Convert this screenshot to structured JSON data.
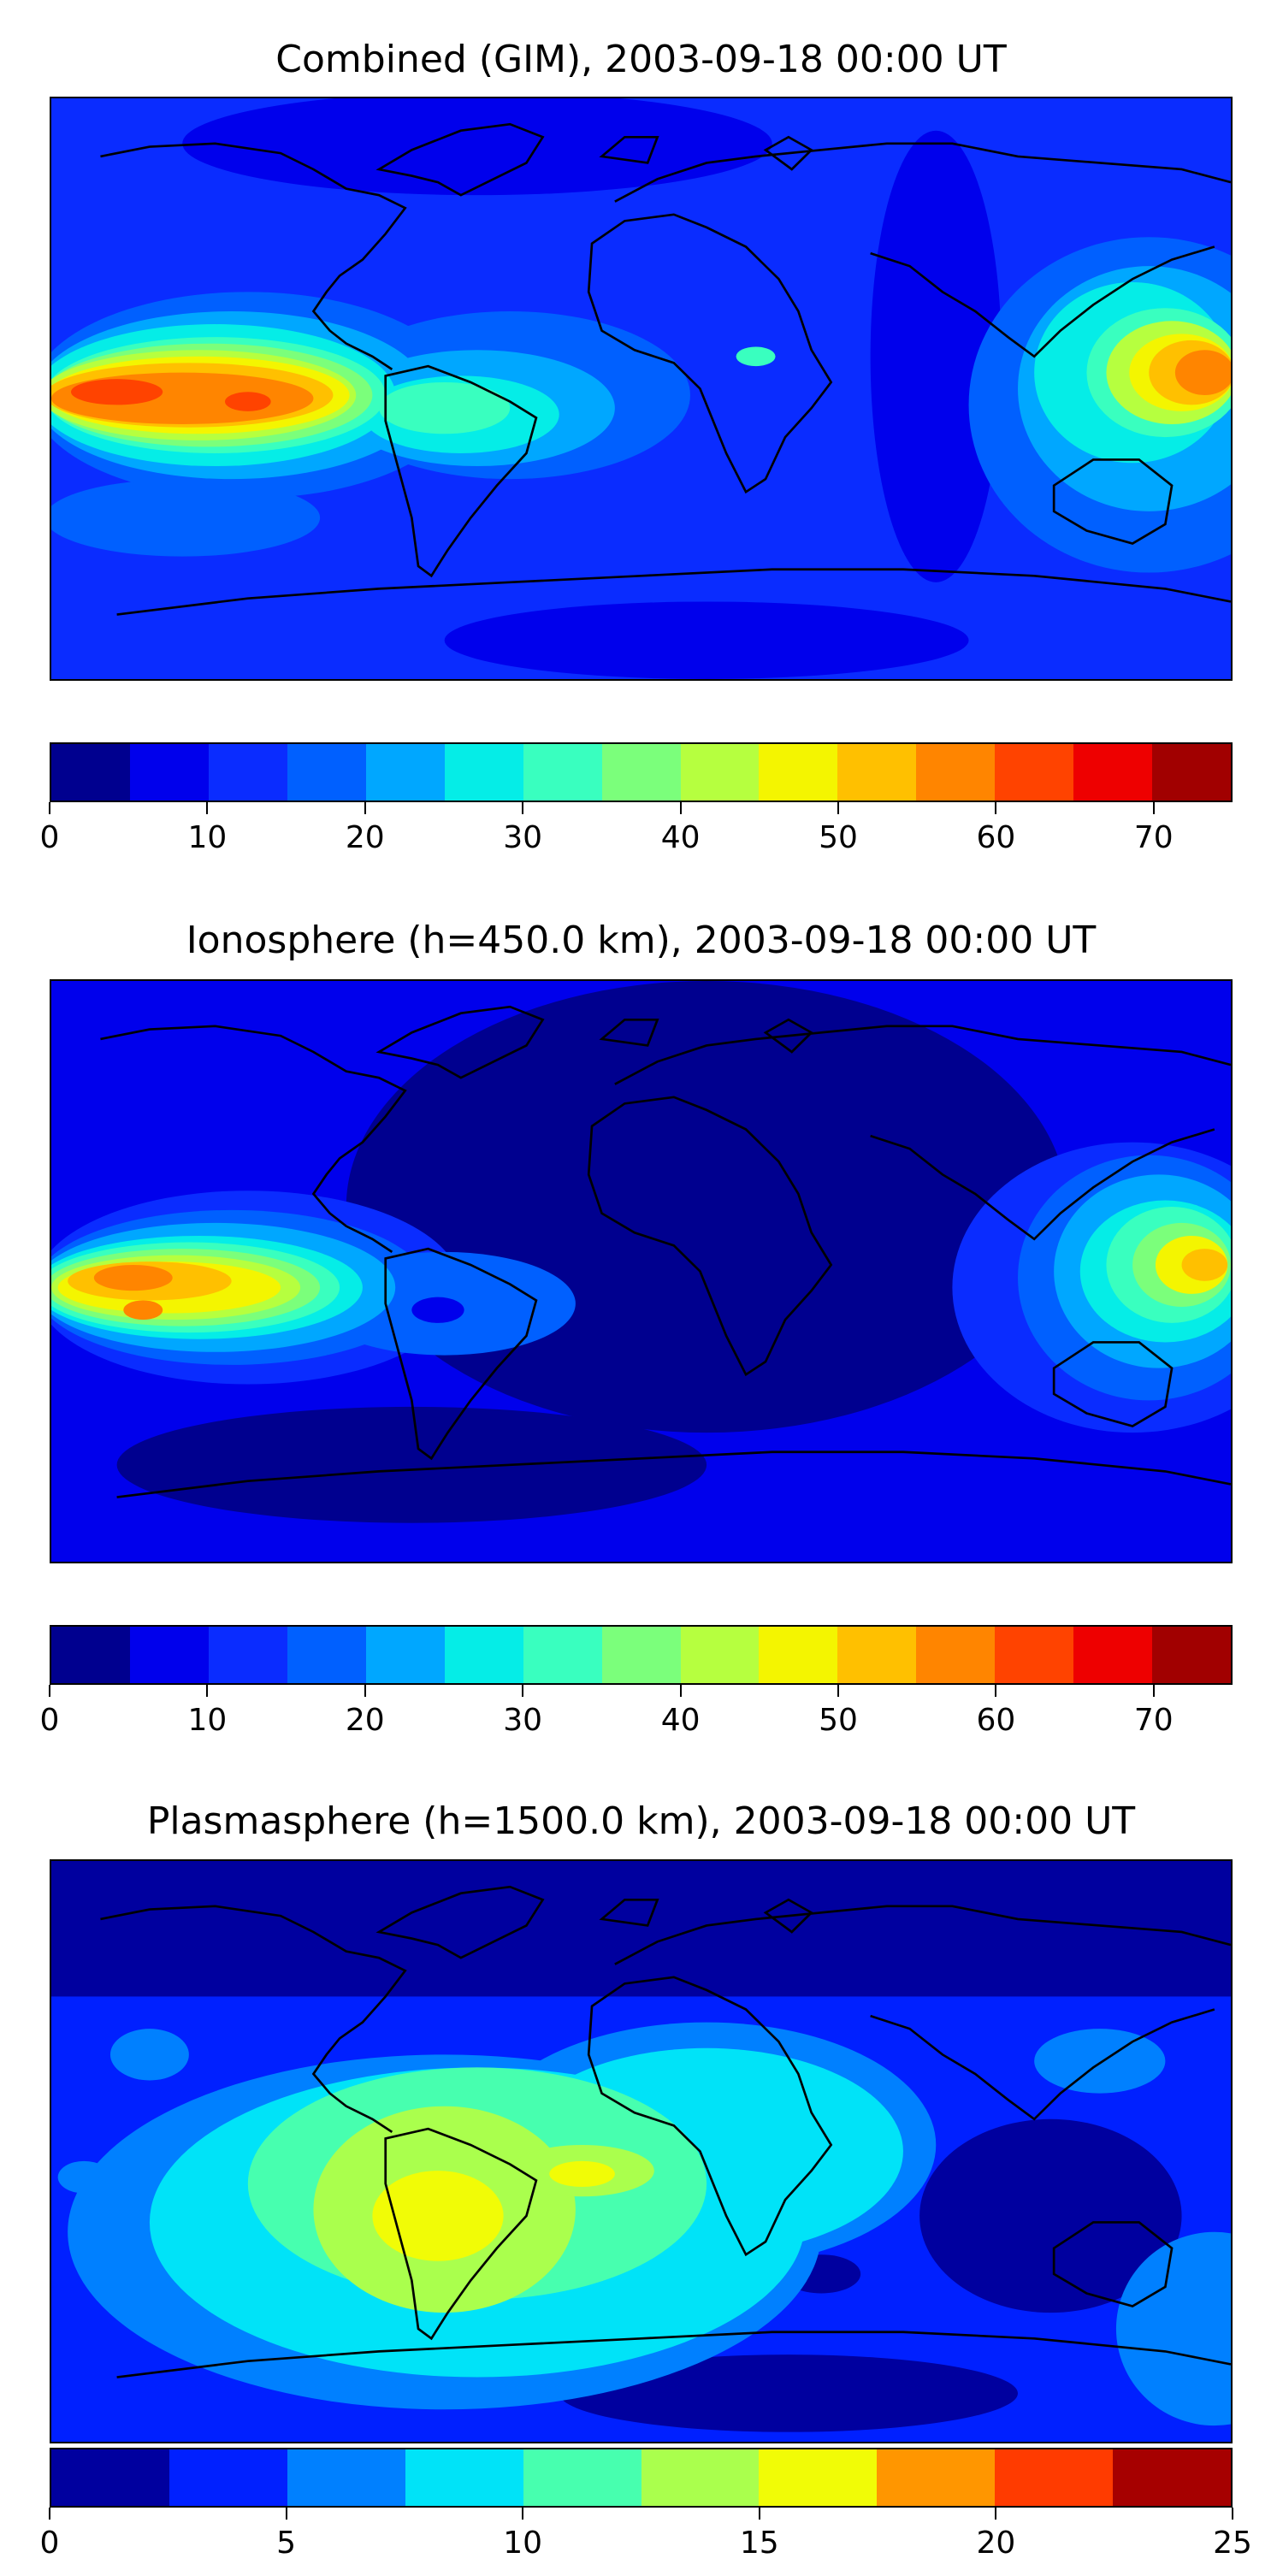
{
  "panels": [
    {
      "title": "Combined (GIM), 2003-09-18 00:00 UT",
      "colorbar": {
        "ticks": [
          "0",
          "10",
          "20",
          "30",
          "40",
          "50",
          "60",
          "70"
        ],
        "tick_values": [
          0,
          10,
          20,
          30,
          40,
          50,
          60,
          70
        ],
        "range": [
          0,
          75
        ],
        "colors": [
          "#00008f",
          "#0000ec",
          "#0a2cff",
          "#0060ff",
          "#00a7ff",
          "#05ede7",
          "#39ffbf",
          "#7bff7b",
          "#b6ff3f",
          "#f4f500",
          "#ffc000",
          "#ff8500",
          "#ff4300",
          "#ee0000",
          "#a10000"
        ]
      }
    },
    {
      "title": "Ionosphere  (h=450.0 km), 2003-09-18 00:00 UT",
      "colorbar": {
        "ticks": [
          "0",
          "10",
          "20",
          "30",
          "40",
          "50",
          "60",
          "70"
        ],
        "tick_values": [
          0,
          10,
          20,
          30,
          40,
          50,
          60,
          70
        ],
        "range": [
          0,
          75
        ],
        "colors": [
          "#00008f",
          "#0000ec",
          "#0a2cff",
          "#0060ff",
          "#00a7ff",
          "#05ede7",
          "#39ffbf",
          "#7bff7b",
          "#b6ff3f",
          "#f4f500",
          "#ffc000",
          "#ff8500",
          "#ff4300",
          "#ee0000",
          "#a10000"
        ]
      }
    },
    {
      "title": "Plasmasphere (h=1500.0 km), 2003-09-18 00:00 UT",
      "colorbar": {
        "ticks": [
          "0",
          "5",
          "10",
          "15",
          "20",
          "25"
        ],
        "tick_values": [
          0,
          5,
          10,
          15,
          20,
          25
        ],
        "range": [
          0,
          25
        ],
        "colors": [
          "#00009f",
          "#0020ff",
          "#0080ff",
          "#00e3f8",
          "#47ffaf",
          "#aaff4d",
          "#f1fc06",
          "#ff9600",
          "#ff3b00",
          "#a60000"
        ]
      }
    }
  ]
}
